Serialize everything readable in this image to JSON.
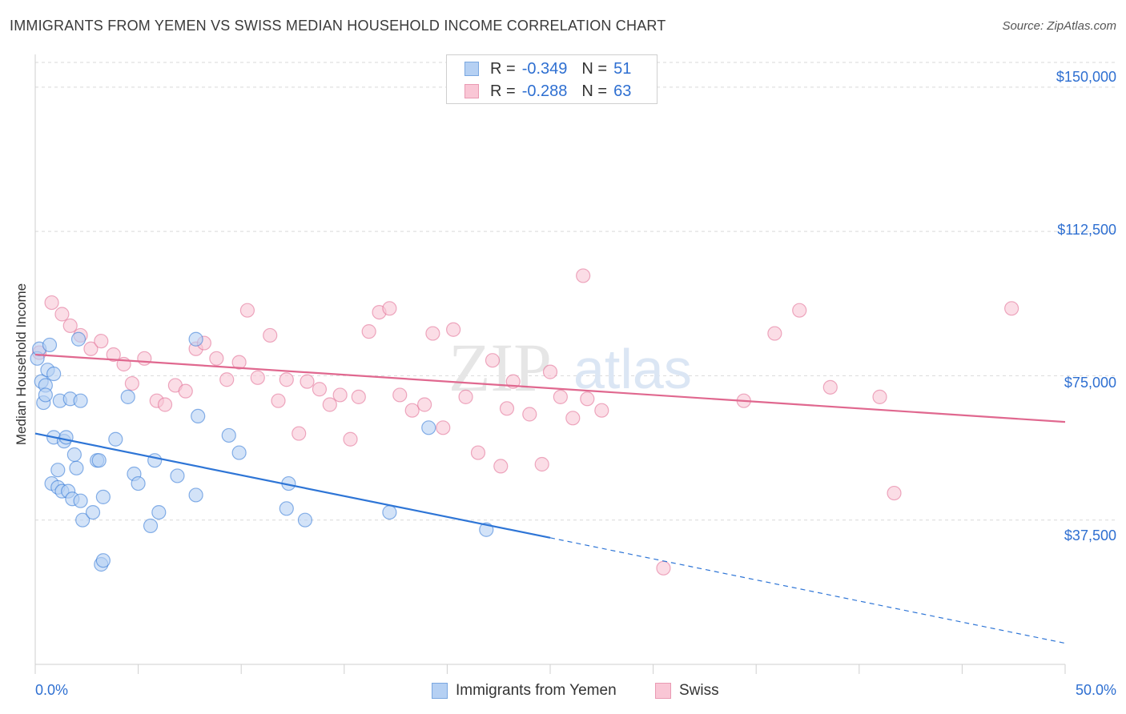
{
  "title": "IMMIGRANTS FROM YEMEN VS SWISS MEDIAN HOUSEHOLD INCOME CORRELATION CHART",
  "source": "Source: ZipAtlas.com",
  "watermark": {
    "zip": "ZIP",
    "atlas": "atlas"
  },
  "legend_top": [
    {
      "r_label": "R =",
      "r_value": "-0.349",
      "n_label": "N =",
      "n_value": "51",
      "color": "#a8c8f0"
    },
    {
      "r_label": "R =",
      "r_value": "-0.288",
      "n_label": "N =",
      "n_value": "63",
      "color": "#f6b8cb"
    }
  ],
  "chart_data": {
    "type": "scatter",
    "title": "IMMIGRANTS FROM YEMEN VS SWISS MEDIAN HOUSEHOLD INCOME CORRELATION CHART",
    "xlabel": "",
    "ylabel": "Median Household Income",
    "xlim": [
      0,
      50
    ],
    "ylim": [
      0,
      156000
    ],
    "x_tick_labels": [
      "0.0%",
      "50.0%"
    ],
    "y_ticks": [
      37500,
      75000,
      112500,
      150000
    ],
    "y_tick_labels": [
      "$37,500",
      "$75,000",
      "$112,500",
      "$150,000"
    ],
    "grid": true,
    "legend_position": "bottom",
    "series": [
      {
        "name": "Immigrants from Yemen",
        "color": "#2e75d6",
        "fill": "#b5d0f3",
        "trend": {
          "x_start": 0,
          "y_start": 60000,
          "x_solid_end": 25,
          "y_solid_end": 32900,
          "x_end": 50,
          "y_end": 5500
        },
        "points": [
          [
            0.1,
            79500
          ],
          [
            0.2,
            82000
          ],
          [
            0.3,
            73500
          ],
          [
            0.4,
            68000
          ],
          [
            0.5,
            72500
          ],
          [
            0.5,
            70000
          ],
          [
            0.6,
            76500
          ],
          [
            0.7,
            83000
          ],
          [
            0.8,
            47000
          ],
          [
            0.9,
            75500
          ],
          [
            0.9,
            59000
          ],
          [
            1.1,
            50500
          ],
          [
            1.1,
            46000
          ],
          [
            1.2,
            68500
          ],
          [
            1.3,
            45000
          ],
          [
            1.4,
            58000
          ],
          [
            1.5,
            59000
          ],
          [
            1.6,
            45000
          ],
          [
            1.7,
            69000
          ],
          [
            1.8,
            43000
          ],
          [
            1.9,
            54500
          ],
          [
            2.0,
            51000
          ],
          [
            2.1,
            84500
          ],
          [
            2.2,
            42500
          ],
          [
            2.2,
            68500
          ],
          [
            2.3,
            37500
          ],
          [
            2.8,
            39500
          ],
          [
            3.0,
            53000
          ],
          [
            3.1,
            53000
          ],
          [
            3.2,
            26000
          ],
          [
            3.3,
            27000
          ],
          [
            3.3,
            43500
          ],
          [
            3.9,
            58500
          ],
          [
            4.5,
            69500
          ],
          [
            4.8,
            49500
          ],
          [
            5.0,
            47000
          ],
          [
            5.6,
            36000
          ],
          [
            5.8,
            53000
          ],
          [
            6.0,
            39500
          ],
          [
            6.9,
            49000
          ],
          [
            7.8,
            44000
          ],
          [
            7.8,
            84500
          ],
          [
            7.9,
            64500
          ],
          [
            9.4,
            59500
          ],
          [
            9.9,
            55000
          ],
          [
            12.3,
            47000
          ],
          [
            12.2,
            40500
          ],
          [
            13.1,
            37500
          ],
          [
            17.2,
            39500
          ],
          [
            19.1,
            61500
          ],
          [
            21.9,
            35000
          ]
        ]
      },
      {
        "name": "Swiss",
        "color": "#e0688f",
        "fill": "#f9c6d5",
        "trend": {
          "x_start": 0,
          "y_start": 80500,
          "x_end": 50,
          "y_end": 63000
        },
        "points": [
          [
            0.2,
            81000
          ],
          [
            0.8,
            94000
          ],
          [
            1.3,
            91000
          ],
          [
            1.7,
            88000
          ],
          [
            2.2,
            85500
          ],
          [
            2.7,
            82000
          ],
          [
            3.2,
            84000
          ],
          [
            3.8,
            80500
          ],
          [
            4.3,
            78000
          ],
          [
            4.7,
            73000
          ],
          [
            5.3,
            79500
          ],
          [
            5.9,
            68500
          ],
          [
            6.3,
            67500
          ],
          [
            6.8,
            72500
          ],
          [
            7.3,
            71000
          ],
          [
            7.8,
            82000
          ],
          [
            8.2,
            83500
          ],
          [
            8.8,
            79500
          ],
          [
            9.3,
            74000
          ],
          [
            9.9,
            78500
          ],
          [
            10.3,
            92000
          ],
          [
            10.8,
            74500
          ],
          [
            11.4,
            85500
          ],
          [
            11.8,
            68500
          ],
          [
            12.2,
            74000
          ],
          [
            12.8,
            60000
          ],
          [
            13.2,
            73500
          ],
          [
            13.8,
            71500
          ],
          [
            14.3,
            67500
          ],
          [
            14.8,
            70000
          ],
          [
            15.3,
            58500
          ],
          [
            15.7,
            69500
          ],
          [
            16.2,
            86500
          ],
          [
            16.7,
            91500
          ],
          [
            17.2,
            92500
          ],
          [
            17.7,
            70000
          ],
          [
            18.3,
            66000
          ],
          [
            18.9,
            67500
          ],
          [
            19.3,
            86000
          ],
          [
            19.8,
            61500
          ],
          [
            20.3,
            87000
          ],
          [
            20.9,
            69500
          ],
          [
            21.5,
            55000
          ],
          [
            22.2,
            79000
          ],
          [
            22.6,
            51500
          ],
          [
            22.9,
            66500
          ],
          [
            23.2,
            73500
          ],
          [
            24.0,
            65000
          ],
          [
            24.6,
            52000
          ],
          [
            25.0,
            76000
          ],
          [
            25.5,
            69500
          ],
          [
            26.1,
            64000
          ],
          [
            26.6,
            101000
          ],
          [
            26.8,
            69000
          ],
          [
            27.5,
            66000
          ],
          [
            30.5,
            25000
          ],
          [
            34.4,
            68500
          ],
          [
            35.9,
            86000
          ],
          [
            37.1,
            92000
          ],
          [
            38.6,
            72000
          ],
          [
            41.0,
            69500
          ],
          [
            41.7,
            44500
          ],
          [
            47.4,
            92500
          ]
        ]
      }
    ]
  }
}
